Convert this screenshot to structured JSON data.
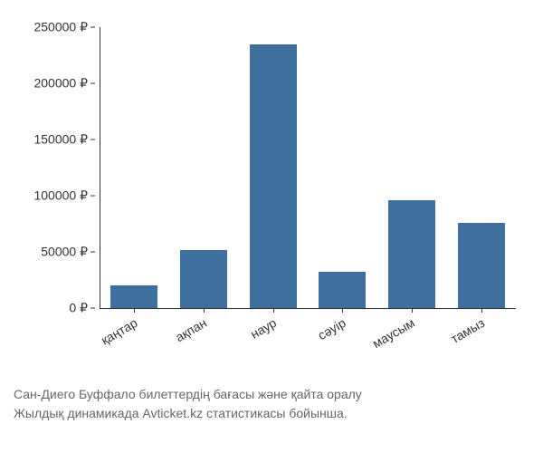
{
  "chart": {
    "type": "bar",
    "ylim": [
      0,
      250000
    ],
    "ytick_step": 50000,
    "ytick_labels": [
      "0 ₽",
      "50000 ₽",
      "100000 ₽",
      "150000 ₽",
      "200000 ₽",
      "250000 ₽"
    ],
    "ytick_values": [
      0,
      50000,
      100000,
      150000,
      200000,
      250000
    ],
    "categories": [
      "қаңтар",
      "ақпан",
      "наур",
      "сәуір",
      "маусым",
      "тамыз"
    ],
    "values": [
      20000,
      52000,
      235000,
      32000,
      96000,
      76000
    ],
    "bar_color": "#3f6f9e",
    "bar_width_ratio": 0.68,
    "background_color": "#ffffff",
    "axis_color": "#333333",
    "tick_fontsize": 14,
    "tick_color": "#333333",
    "x_label_rotation": -30
  },
  "caption": {
    "line1": "Сан-Диего Буффало билеттердің бағасы және қайта оралу",
    "line2": "Жылдық динамикада Avticket.kz статистикасы бойынша.",
    "color": "#666666",
    "fontsize": 14
  }
}
